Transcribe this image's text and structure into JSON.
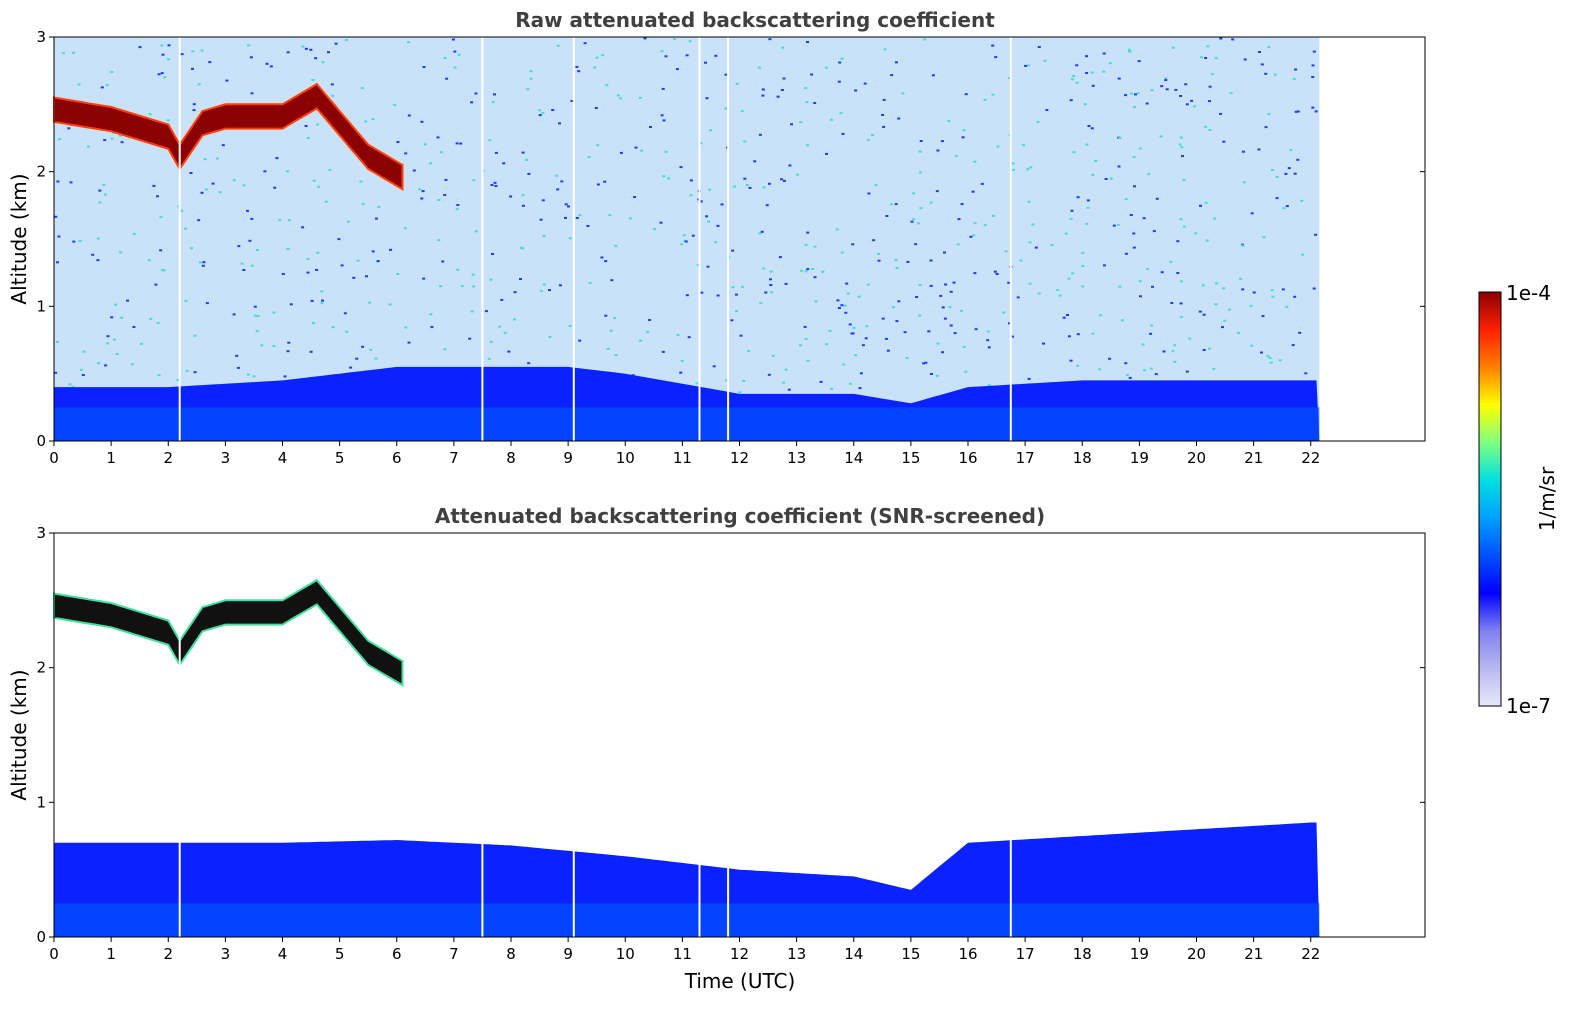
{
  "chart_data": {
    "type": "heatmap",
    "xlabel": "Time (UTC)",
    "x_ticks": [
      0,
      1,
      2,
      3,
      4,
      5,
      6,
      7,
      8,
      9,
      10,
      11,
      12,
      13,
      14,
      15,
      16,
      17,
      18,
      19,
      20,
      21,
      22
    ],
    "xlim": [
      0,
      24
    ],
    "data_end_x": 22.15,
    "colorbar": {
      "label": "1/m/sr",
      "min_label": "1e-7",
      "max_label": "1e-4",
      "scale": "log",
      "colormap": [
        "#e8e8f8",
        "#b8b8f0",
        "#8080f0",
        "#0000ff",
        "#0050ff",
        "#00a0ff",
        "#00e0e0",
        "#80ff80",
        "#ffff00",
        "#ff8000",
        "#ff2000",
        "#8b0000"
      ]
    },
    "panels": [
      {
        "title": "Raw attenuated backscattering coefficient",
        "ylabel": "Altitude (km)",
        "ylim": [
          0,
          3
        ],
        "y_ticks": [
          0,
          1,
          2,
          3
        ],
        "gaps_x": [
          2.2,
          7.5,
          9.1,
          11.3,
          11.8,
          16.75
        ],
        "cloud_layer_top_km": [
          [
            0,
            2.55
          ],
          [
            1,
            2.48
          ],
          [
            2,
            2.35
          ],
          [
            2.2,
            2.2
          ],
          [
            2.6,
            2.45
          ],
          [
            3,
            2.5
          ],
          [
            4,
            2.5
          ],
          [
            4.6,
            2.65
          ],
          [
            5.5,
            2.2
          ],
          [
            6.1,
            2.05
          ]
        ],
        "boundary_layer_top_km": [
          [
            0,
            0.4
          ],
          [
            2,
            0.4
          ],
          [
            4,
            0.45
          ],
          [
            6,
            0.55
          ],
          [
            8,
            0.55
          ],
          [
            9,
            0.55
          ],
          [
            10,
            0.5
          ],
          [
            12,
            0.35
          ],
          [
            14,
            0.35
          ],
          [
            15,
            0.28
          ],
          [
            16,
            0.4
          ],
          [
            18,
            0.45
          ],
          [
            20,
            0.45
          ],
          [
            22,
            0.45
          ]
        ]
      },
      {
        "title": "Attenuated backscattering coefficient (SNR-screened)",
        "ylabel": "Altitude (km)",
        "ylim": [
          0,
          3
        ],
        "y_ticks": [
          0,
          1,
          2,
          3
        ],
        "gaps_x": [
          2.2,
          7.5,
          9.1,
          11.3,
          11.8,
          16.75
        ],
        "cloud_layer_top_km": [
          [
            0,
            2.55
          ],
          [
            1,
            2.48
          ],
          [
            2,
            2.35
          ],
          [
            2.2,
            2.2
          ],
          [
            2.6,
            2.45
          ],
          [
            3,
            2.5
          ],
          [
            4,
            2.5
          ],
          [
            4.6,
            2.65
          ],
          [
            5.5,
            2.2
          ],
          [
            6.1,
            2.05
          ]
        ],
        "boundary_layer_top_km": [
          [
            0,
            0.7
          ],
          [
            2,
            0.7
          ],
          [
            4,
            0.7
          ],
          [
            6,
            0.72
          ],
          [
            8,
            0.68
          ],
          [
            10,
            0.6
          ],
          [
            12,
            0.5
          ],
          [
            14,
            0.45
          ],
          [
            15,
            0.35
          ],
          [
            16,
            0.7
          ],
          [
            18,
            0.75
          ],
          [
            20,
            0.8
          ],
          [
            22,
            0.85
          ]
        ]
      }
    ]
  }
}
